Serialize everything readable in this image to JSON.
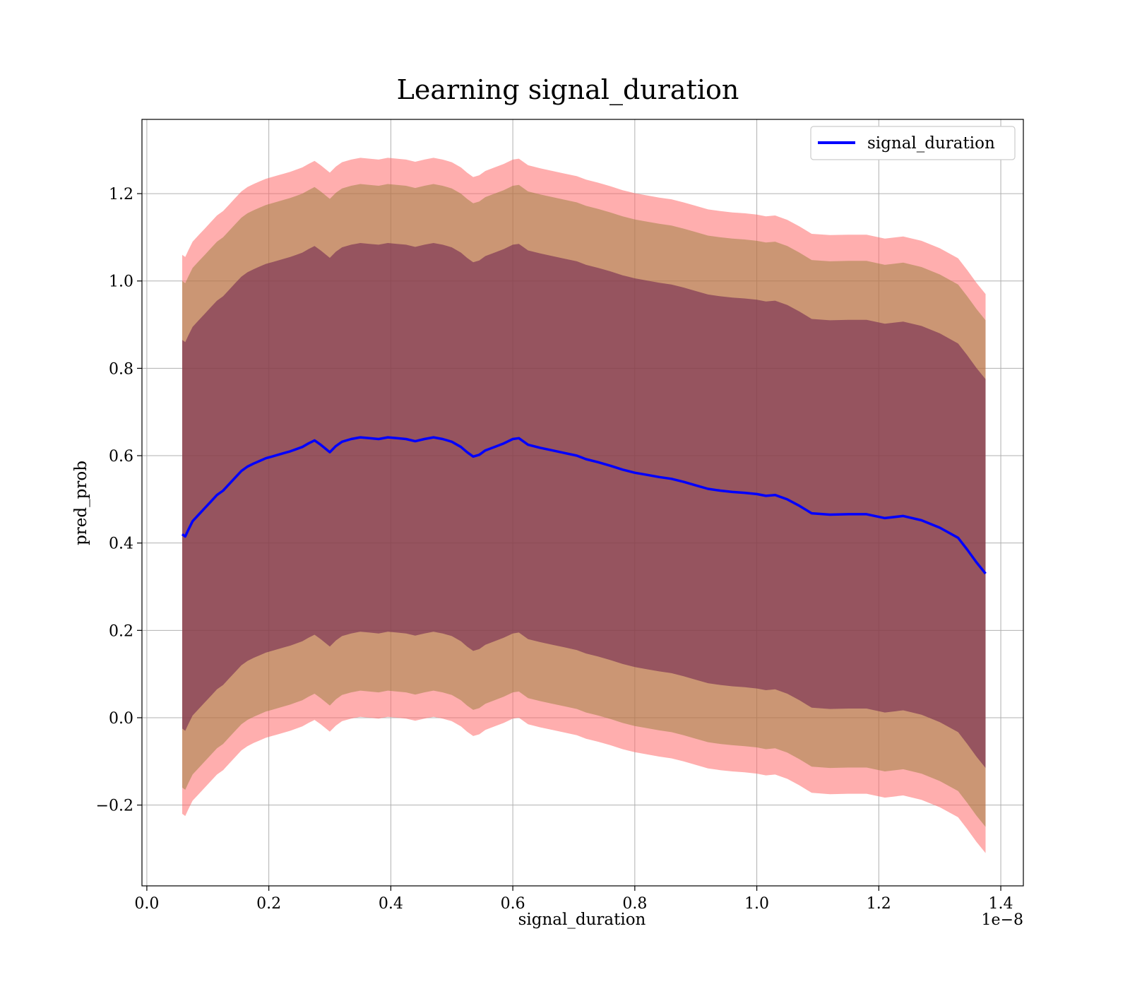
{
  "chart_data": {
    "type": "line",
    "title": "Learning signal_duration",
    "xlabel": "signal_duration",
    "ylabel": "pred_prob",
    "x_offset_label": "1e−8",
    "xlim": [
      -0.008,
      1.437
    ],
    "ylim": [
      -0.385,
      1.37
    ],
    "x_ticks": [
      0.0,
      0.2,
      0.4,
      0.6,
      0.8,
      1.0,
      1.2,
      1.4
    ],
    "x_tick_labels": [
      "0.0",
      "0.2",
      "0.4",
      "0.6",
      "0.8",
      "1.0",
      "1.2",
      "1.4"
    ],
    "y_ticks": [
      -0.2,
      0.0,
      0.2,
      0.4,
      0.6,
      0.8,
      1.0,
      1.2
    ],
    "y_tick_labels": [
      "−0.2",
      "0.0",
      "0.2",
      "0.4",
      "0.6",
      "0.8",
      "1.0",
      "1.2"
    ],
    "grid": true,
    "legend_position": "top-right",
    "colors": {
      "line": "#0000ff",
      "band_outer": "#ff6b6b",
      "band_middle": "#8b7a2e",
      "band_inner": "#6b1f4e"
    },
    "series": [
      {
        "name": "signal_duration",
        "x": [
          0.058,
          0.063,
          0.068,
          0.075,
          0.085,
          0.095,
          0.105,
          0.115,
          0.125,
          0.135,
          0.145,
          0.155,
          0.165,
          0.175,
          0.185,
          0.195,
          0.205,
          0.215,
          0.225,
          0.235,
          0.245,
          0.255,
          0.265,
          0.275,
          0.285,
          0.3,
          0.31,
          0.32,
          0.335,
          0.35,
          0.365,
          0.38,
          0.395,
          0.41,
          0.425,
          0.44,
          0.455,
          0.47,
          0.485,
          0.5,
          0.515,
          0.525,
          0.535,
          0.545,
          0.555,
          0.57,
          0.585,
          0.6,
          0.61,
          0.625,
          0.645,
          0.665,
          0.685,
          0.705,
          0.72,
          0.74,
          0.76,
          0.78,
          0.8,
          0.82,
          0.84,
          0.86,
          0.88,
          0.9,
          0.92,
          0.94,
          0.96,
          0.98,
          1.0,
          1.015,
          1.03,
          1.05,
          1.07,
          1.09,
          1.12,
          1.15,
          1.18,
          1.21,
          1.24,
          1.27,
          1.3,
          1.33,
          1.345,
          1.36,
          1.375
        ],
        "y": [
          0.42,
          0.415,
          0.43,
          0.45,
          0.465,
          0.48,
          0.495,
          0.51,
          0.52,
          0.535,
          0.55,
          0.565,
          0.575,
          0.582,
          0.588,
          0.594,
          0.598,
          0.602,
          0.606,
          0.61,
          0.615,
          0.62,
          0.628,
          0.635,
          0.625,
          0.608,
          0.622,
          0.632,
          0.638,
          0.642,
          0.64,
          0.638,
          0.642,
          0.64,
          0.638,
          0.633,
          0.638,
          0.642,
          0.638,
          0.632,
          0.62,
          0.608,
          0.598,
          0.602,
          0.612,
          0.62,
          0.628,
          0.638,
          0.64,
          0.625,
          0.618,
          0.612,
          0.606,
          0.6,
          0.592,
          0.585,
          0.577,
          0.568,
          0.561,
          0.556,
          0.551,
          0.547,
          0.54,
          0.532,
          0.524,
          0.52,
          0.517,
          0.515,
          0.512,
          0.508,
          0.51,
          0.5,
          0.485,
          0.468,
          0.465,
          0.466,
          0.466,
          0.457,
          0.462,
          0.452,
          0.435,
          0.412,
          0.385,
          0.356,
          0.33
        ]
      }
    ],
    "bands": {
      "inner_halfwidth": 0.445,
      "middle_halfwidth": 0.58,
      "outer_halfwidth": 0.64
    }
  }
}
